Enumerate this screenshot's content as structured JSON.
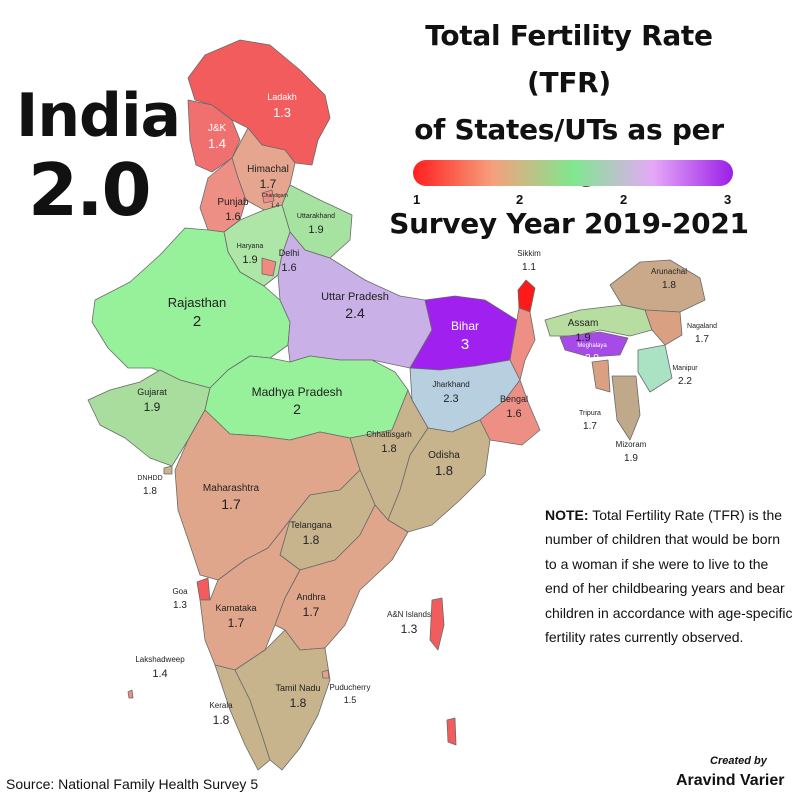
{
  "title_lines": [
    "Total Fertility Rate (TFR)",
    "of States/UTs as per the",
    "Survey Year 2019-2021"
  ],
  "country": {
    "name": "India",
    "value": "2.0"
  },
  "legend": {
    "ticks": [
      "1",
      "2",
      "2",
      "3"
    ],
    "colors": [
      "#ff1f1f",
      "#f6a07d",
      "#7fe88f",
      "#e5a8f7",
      "#9b1fe8"
    ]
  },
  "note": {
    "lead": "NOTE:",
    "text": "Total Fertility Rate (TFR) is the number of children that would be born to a woman if she were to live to the end of her childbearing years and bear children in accordance with age-specific fertility rates currently observed."
  },
  "source": "Source: National Family Health Survey 5",
  "credit": {
    "line1": "Created by",
    "line2": "Aravind Varier"
  },
  "regions": [
    {
      "id": "ladakh",
      "name": "Ladakh",
      "value": "1.3",
      "color": "#f25c5c"
    },
    {
      "id": "jk",
      "name": "J&K",
      "value": "1.4",
      "color": "#f07070"
    },
    {
      "id": "himachal",
      "name": "Himachal",
      "value": "1.7",
      "color": "#e6a58e"
    },
    {
      "id": "chandigarh",
      "name": "Chandigarh",
      "value": "1.4",
      "color": "#ec8e86"
    },
    {
      "id": "punjab",
      "name": "Punjab",
      "value": "1.6",
      "color": "#ee8f86"
    },
    {
      "id": "uttarakhand",
      "name": "Uttarakhand",
      "value": "1.9",
      "color": "#a6e2a0"
    },
    {
      "id": "haryana",
      "name": "Haryana",
      "value": "1.9",
      "color": "#aee6a8"
    },
    {
      "id": "delhi",
      "name": "Delhi",
      "value": "1.6",
      "color": "#ee8a80"
    },
    {
      "id": "rajasthan",
      "name": "Rajasthan",
      "value": "2",
      "color": "#97f09a"
    },
    {
      "id": "up",
      "name": "Uttar Pradesh",
      "value": "2.4",
      "color": "#c9b0e6"
    },
    {
      "id": "bihar",
      "name": "Bihar",
      "value": "3",
      "color": "#a020f0"
    },
    {
      "id": "sikkim",
      "name": "Sikkim",
      "value": "1.1",
      "color": "#ff1a1a"
    },
    {
      "id": "arunachal",
      "name": "Arunachal",
      "value": "1.8",
      "color": "#c9a98a"
    },
    {
      "id": "assam",
      "name": "Assam",
      "value": "1.9",
      "color": "#b7dda0"
    },
    {
      "id": "nagaland",
      "name": "Nagaland",
      "value": "1.7",
      "color": "#d9a082"
    },
    {
      "id": "meghalaya",
      "name": "Meghalaya",
      "value": "2.9",
      "color": "#a64be8"
    },
    {
      "id": "manipur",
      "name": "Manipur",
      "value": "2.2",
      "color": "#a9e3c4"
    },
    {
      "id": "tripura",
      "name": "Tripura",
      "value": "1.7",
      "color": "#d9a082"
    },
    {
      "id": "mizoram",
      "name": "Mizoram",
      "value": "1.9",
      "color": "#c0a98a"
    },
    {
      "id": "gujarat",
      "name": "Gujarat",
      "value": "1.9",
      "color": "#a8dd9e"
    },
    {
      "id": "mp",
      "name": "Madhya Pradesh",
      "value": "2",
      "color": "#97f09a"
    },
    {
      "id": "jharkhand",
      "name": "Jharkhand",
      "value": "2.3",
      "color": "#b8cfe0"
    },
    {
      "id": "bengal",
      "name": "Bengal",
      "value": "1.6",
      "color": "#ee8f86"
    },
    {
      "id": "chhattisgarh",
      "name": "Chhattisgarh",
      "value": "1.8",
      "color": "#c7b48d"
    },
    {
      "id": "odisha",
      "name": "Odisha",
      "value": "1.8",
      "color": "#c7b48d"
    },
    {
      "id": "dnhdd",
      "name": "DNHDD",
      "value": "1.8",
      "color": "#c7b48d"
    },
    {
      "id": "maharashtra",
      "name": "Maharashtra",
      "value": "1.7",
      "color": "#dfa68b"
    },
    {
      "id": "telangana",
      "name": "Telangana",
      "value": "1.8",
      "color": "#c7b48d"
    },
    {
      "id": "goa",
      "name": "Goa",
      "value": "1.3",
      "color": "#f25c5c"
    },
    {
      "id": "karnataka",
      "name": "Karnataka",
      "value": "1.7",
      "color": "#dfa68b"
    },
    {
      "id": "andhra",
      "name": "Andhra",
      "value": "1.7",
      "color": "#dfa68b"
    },
    {
      "id": "an_islands",
      "name": "A&N Islands",
      "value": "1.3",
      "color": "#f25c5c"
    },
    {
      "id": "lakshadweep",
      "name": "Lakshadweep",
      "value": "1.4",
      "color": "#ec8e86"
    },
    {
      "id": "kerala",
      "name": "Kerala",
      "value": "1.8",
      "color": "#c7b48d"
    },
    {
      "id": "tamilnadu",
      "name": "Tamil Nadu",
      "value": "1.8",
      "color": "#c7b48d"
    },
    {
      "id": "puducherry",
      "name": "Puducherry",
      "value": "1.5",
      "color": "#e8a08a"
    }
  ]
}
